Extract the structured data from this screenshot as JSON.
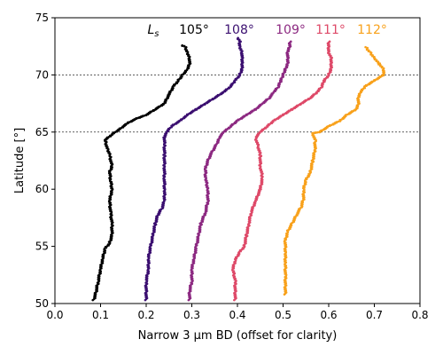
{
  "chart_data": {
    "type": "scatter",
    "title": "",
    "xlabel": "Narrow 3 µm BD (offset for clarity)",
    "ylabel": "Latitude [°]",
    "xlim": [
      0.0,
      0.8
    ],
    "ylim": [
      50,
      75
    ],
    "xticks": [
      "0.0",
      "0.1",
      "0.2",
      "0.3",
      "0.4",
      "0.5",
      "0.6",
      "0.7",
      "0.8"
    ],
    "yticks": [
      "50",
      "55",
      "60",
      "65",
      "70",
      "75"
    ],
    "reference_lines": [
      65,
      70
    ],
    "legend_prefix": "L_s",
    "series": [
      {
        "name": "105°",
        "color": "#000000",
        "points": [
          [
            0.085,
            50.3
          ],
          [
            0.09,
            51.0
          ],
          [
            0.095,
            52.0
          ],
          [
            0.1,
            53.0
          ],
          [
            0.105,
            54.0
          ],
          [
            0.11,
            54.8
          ],
          [
            0.12,
            55.3
          ],
          [
            0.125,
            56.0
          ],
          [
            0.125,
            57.0
          ],
          [
            0.122,
            58.0
          ],
          [
            0.12,
            59.0
          ],
          [
            0.125,
            60.0
          ],
          [
            0.122,
            60.8
          ],
          [
            0.12,
            61.5
          ],
          [
            0.125,
            62.0
          ],
          [
            0.12,
            63.0
          ],
          [
            0.115,
            63.5
          ],
          [
            0.11,
            64.3
          ],
          [
            0.125,
            64.8
          ],
          [
            0.14,
            65.2
          ],
          [
            0.16,
            65.8
          ],
          [
            0.18,
            66.2
          ],
          [
            0.2,
            66.5
          ],
          [
            0.22,
            67.0
          ],
          [
            0.24,
            67.5
          ],
          [
            0.25,
            68.3
          ],
          [
            0.26,
            69.0
          ],
          [
            0.27,
            69.5
          ],
          [
            0.28,
            70.0
          ],
          [
            0.29,
            70.5
          ],
          [
            0.295,
            71.0
          ],
          [
            0.295,
            71.5
          ],
          [
            0.29,
            72.0
          ],
          [
            0.285,
            72.5
          ],
          [
            0.275,
            72.6
          ]
        ]
      },
      {
        "name": "108°",
        "color": "#3b0f70",
        "points": [
          [
            0.2,
            50.3
          ],
          [
            0.2,
            51.0
          ],
          [
            0.2,
            52.0
          ],
          [
            0.205,
            53.0
          ],
          [
            0.205,
            54.0
          ],
          [
            0.21,
            55.0
          ],
          [
            0.215,
            56.0
          ],
          [
            0.22,
            57.0
          ],
          [
            0.225,
            57.7
          ],
          [
            0.235,
            58.4
          ],
          [
            0.24,
            59.0
          ],
          [
            0.24,
            60.0
          ],
          [
            0.24,
            61.0
          ],
          [
            0.24,
            62.0
          ],
          [
            0.24,
            63.0
          ],
          [
            0.24,
            64.0
          ],
          [
            0.24,
            64.6
          ],
          [
            0.245,
            65.0
          ],
          [
            0.255,
            65.5
          ],
          [
            0.275,
            66.0
          ],
          [
            0.29,
            66.5
          ],
          [
            0.31,
            67.0
          ],
          [
            0.33,
            67.5
          ],
          [
            0.35,
            68.0
          ],
          [
            0.37,
            68.5
          ],
          [
            0.385,
            69.0
          ],
          [
            0.395,
            69.5
          ],
          [
            0.405,
            70.0
          ],
          [
            0.41,
            70.5
          ],
          [
            0.41,
            71.0
          ],
          [
            0.41,
            71.5
          ],
          [
            0.41,
            72.0
          ],
          [
            0.405,
            72.5
          ],
          [
            0.405,
            73.0
          ],
          [
            0.4,
            73.3
          ]
        ]
      },
      {
        "name": "109°",
        "color": "#8c2981",
        "points": [
          [
            0.295,
            50.3
          ],
          [
            0.295,
            51.0
          ],
          [
            0.3,
            52.0
          ],
          [
            0.3,
            53.0
          ],
          [
            0.305,
            54.0
          ],
          [
            0.31,
            55.0
          ],
          [
            0.315,
            56.0
          ],
          [
            0.32,
            57.0
          ],
          [
            0.33,
            58.0
          ],
          [
            0.335,
            59.0
          ],
          [
            0.335,
            60.0
          ],
          [
            0.33,
            61.0
          ],
          [
            0.33,
            61.8
          ],
          [
            0.335,
            62.5
          ],
          [
            0.345,
            63.3
          ],
          [
            0.355,
            64.0
          ],
          [
            0.36,
            64.5
          ],
          [
            0.37,
            65.0
          ],
          [
            0.385,
            65.5
          ],
          [
            0.4,
            66.0
          ],
          [
            0.42,
            66.5
          ],
          [
            0.44,
            67.0
          ],
          [
            0.455,
            67.5
          ],
          [
            0.47,
            68.0
          ],
          [
            0.48,
            68.5
          ],
          [
            0.49,
            69.0
          ],
          [
            0.495,
            69.5
          ],
          [
            0.5,
            70.0
          ],
          [
            0.505,
            70.5
          ],
          [
            0.51,
            71.0
          ],
          [
            0.51,
            71.5
          ],
          [
            0.51,
            72.0
          ],
          [
            0.515,
            72.5
          ],
          [
            0.515,
            73.0
          ]
        ]
      },
      {
        "name": "111°",
        "color": "#de4968",
        "points": [
          [
            0.395,
            50.3
          ],
          [
            0.395,
            51.0
          ],
          [
            0.395,
            52.0
          ],
          [
            0.39,
            53.0
          ],
          [
            0.395,
            53.8
          ],
          [
            0.405,
            54.5
          ],
          [
            0.415,
            55.0
          ],
          [
            0.42,
            56.0
          ],
          [
            0.425,
            57.0
          ],
          [
            0.43,
            58.0
          ],
          [
            0.44,
            59.0
          ],
          [
            0.45,
            60.0
          ],
          [
            0.455,
            61.0
          ],
          [
            0.45,
            62.0
          ],
          [
            0.45,
            63.0
          ],
          [
            0.445,
            63.8
          ],
          [
            0.44,
            64.5
          ],
          [
            0.45,
            65.0
          ],
          [
            0.465,
            65.5
          ],
          [
            0.48,
            66.0
          ],
          [
            0.5,
            66.5
          ],
          [
            0.52,
            67.0
          ],
          [
            0.54,
            67.5
          ],
          [
            0.56,
            68.0
          ],
          [
            0.575,
            68.5
          ],
          [
            0.585,
            69.0
          ],
          [
            0.59,
            69.5
          ],
          [
            0.6,
            70.0
          ],
          [
            0.605,
            70.5
          ],
          [
            0.605,
            71.0
          ],
          [
            0.605,
            71.5
          ],
          [
            0.6,
            72.0
          ],
          [
            0.6,
            72.5
          ],
          [
            0.6,
            73.0
          ]
        ]
      },
      {
        "name": "112°",
        "color": "#f8a11b",
        "points": [
          [
            0.505,
            50.8
          ],
          [
            0.505,
            51.5
          ],
          [
            0.505,
            52.5
          ],
          [
            0.505,
            53.5
          ],
          [
            0.505,
            54.5
          ],
          [
            0.505,
            55.5
          ],
          [
            0.51,
            56.3
          ],
          [
            0.52,
            57.0
          ],
          [
            0.53,
            57.8
          ],
          [
            0.54,
            58.5
          ],
          [
            0.545,
            59.2
          ],
          [
            0.545,
            60.0
          ],
          [
            0.55,
            60.8
          ],
          [
            0.56,
            61.5
          ],
          [
            0.565,
            62.5
          ],
          [
            0.57,
            63.5
          ],
          [
            0.57,
            64.3
          ],
          [
            0.565,
            64.9
          ],
          [
            0.58,
            65.0
          ],
          [
            0.6,
            65.5
          ],
          [
            0.625,
            66.0
          ],
          [
            0.64,
            66.5
          ],
          [
            0.66,
            67.0
          ],
          [
            0.665,
            67.5
          ],
          [
            0.665,
            68.0
          ],
          [
            0.67,
            68.5
          ],
          [
            0.68,
            69.0
          ],
          [
            0.7,
            69.5
          ],
          [
            0.72,
            70.0
          ],
          [
            0.72,
            70.5
          ],
          [
            0.71,
            71.0
          ],
          [
            0.7,
            71.5
          ],
          [
            0.69,
            72.0
          ],
          [
            0.68,
            72.5
          ]
        ]
      }
    ]
  }
}
